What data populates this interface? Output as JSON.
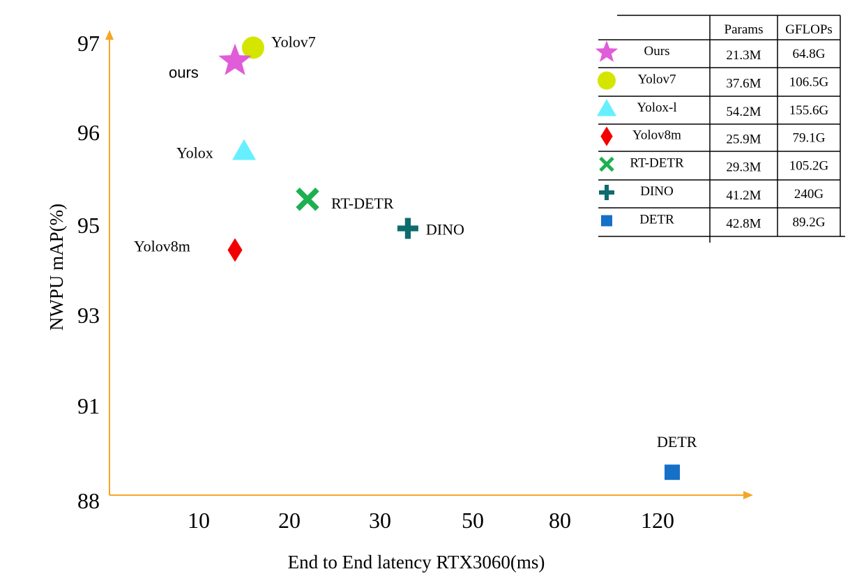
{
  "chart_data": {
    "type": "scatter",
    "title": "",
    "xlabel": "End to End latency RTX3060(ms)",
    "ylabel": "NWPU mAP(%)",
    "x_ticks": [
      "10",
      "20",
      "30",
      "50",
      "80",
      "120"
    ],
    "y_ticks": [
      "88",
      "91",
      "93",
      "95",
      "96",
      "97"
    ],
    "axis_color": "#F5A623",
    "series": [
      {
        "name": "Ours",
        "label": "ours",
        "marker": "star",
        "color": "#E05CD8",
        "latency_ms": 14,
        "map": 96.8
      },
      {
        "name": "Yolov7",
        "label": "Yolov7",
        "marker": "circle",
        "color": "#D4E600",
        "latency_ms": 16,
        "map": 96.95
      },
      {
        "name": "Yolox-l",
        "label": "Yolox",
        "marker": "triangle",
        "color": "#66F0FF",
        "latency_ms": 15,
        "map": 95.8
      },
      {
        "name": "Yolov8m",
        "label": "Yolov8m",
        "marker": "diamond",
        "color": "#F20000",
        "latency_ms": 14,
        "map": 94.45
      },
      {
        "name": "RT-DETR",
        "label": "RT-DETR",
        "marker": "x",
        "color": "#1DB050",
        "latency_ms": 22,
        "map": 95.28
      },
      {
        "name": "DINO",
        "label": "DINO",
        "marker": "plus",
        "color": "#0E6B6E",
        "latency_ms": 36,
        "map": 94.93
      },
      {
        "name": "DETR",
        "label": "DETR",
        "marker": "square",
        "color": "#1570C8",
        "latency_ms": 126,
        "map": 88.9
      }
    ],
    "legend_table": {
      "placement": "top-right",
      "headers": [
        "",
        "Params",
        "GFLOPs"
      ],
      "rows": [
        {
          "model": "Ours",
          "params": "21.3M",
          "gflops": "64.8G"
        },
        {
          "model": "Yolov7",
          "params": "37.6M",
          "gflops": "106.5G"
        },
        {
          "model": "Yolox-l",
          "params": "54.2M",
          "gflops": "155.6G"
        },
        {
          "model": "Yolov8m",
          "params": "25.9M",
          "gflops": "79.1G"
        },
        {
          "model": "RT-DETR",
          "params": "29.3M",
          "gflops": "105.2G"
        },
        {
          "model": "DINO",
          "params": "41.2M",
          "gflops": "240G"
        },
        {
          "model": "DETR",
          "params": "42.8M",
          "gflops": "89.2G"
        }
      ]
    }
  }
}
